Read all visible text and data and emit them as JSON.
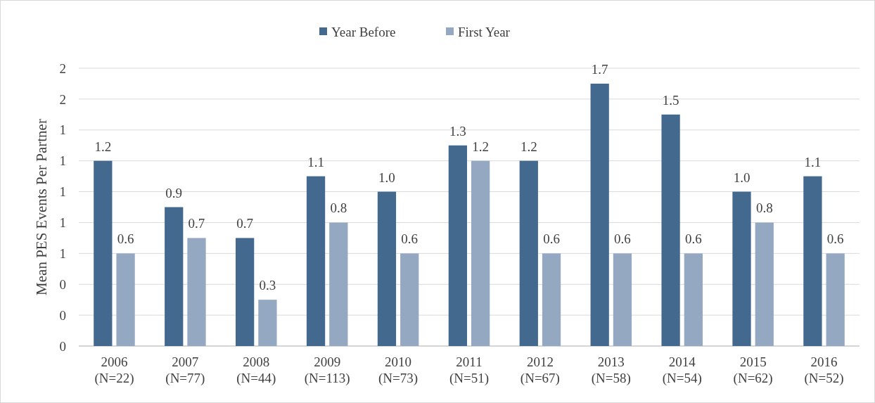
{
  "chart_data": {
    "type": "bar",
    "ylabel": "Mean PES Events Per Partner",
    "categories": [
      "2006 (N=22)",
      "2007 (N=77)",
      "2008 (N=44)",
      "2009 (N=113)",
      "2010 (N=73)",
      "2011 (N=51)",
      "2012 (N=67)",
      "2013 (N=58)",
      "2014 (N=54)",
      "2015 (N=62)",
      "2016 (N=52)"
    ],
    "series": [
      {
        "name": "Year Before",
        "color": "#44698f",
        "values": [
          1.2,
          0.9,
          0.7,
          1.1,
          1.0,
          1.3,
          1.2,
          1.7,
          1.5,
          1.0,
          1.1
        ],
        "value_labels": [
          "1.2",
          "0.9",
          "0.7",
          "1.1",
          "1.0",
          "1.3",
          "1.2",
          "1.7",
          "1.5",
          "1.0",
          "1.1"
        ]
      },
      {
        "name": "First Year",
        "color": "#95a8c1",
        "values": [
          0.6,
          0.7,
          0.3,
          0.8,
          0.6,
          1.2,
          0.6,
          0.6,
          0.6,
          0.8,
          0.6
        ],
        "value_labels": [
          "0.6",
          "0.7",
          "0.3",
          "0.8",
          "0.6",
          "1.2",
          "0.6",
          "0.6",
          "0.6",
          "0.8",
          "0.6"
        ]
      }
    ],
    "ylim": [
      0,
      1.8
    ],
    "yticks": [
      0,
      {
        "value": 0.2,
        "label": "0"
      },
      {
        "value": 0.4,
        "label": "0"
      },
      {
        "value": 0.6,
        "label": "1"
      },
      {
        "value": 0.8,
        "label": "1"
      },
      {
        "value": 1.0,
        "label": "1"
      },
      {
        "value": 1.2,
        "label": "1"
      },
      {
        "value": 1.4,
        "label": "1"
      },
      {
        "value": 1.6,
        "label": "2"
      },
      {
        "value": 1.8,
        "label": "2"
      }
    ],
    "grid": "y",
    "legend": "top"
  }
}
